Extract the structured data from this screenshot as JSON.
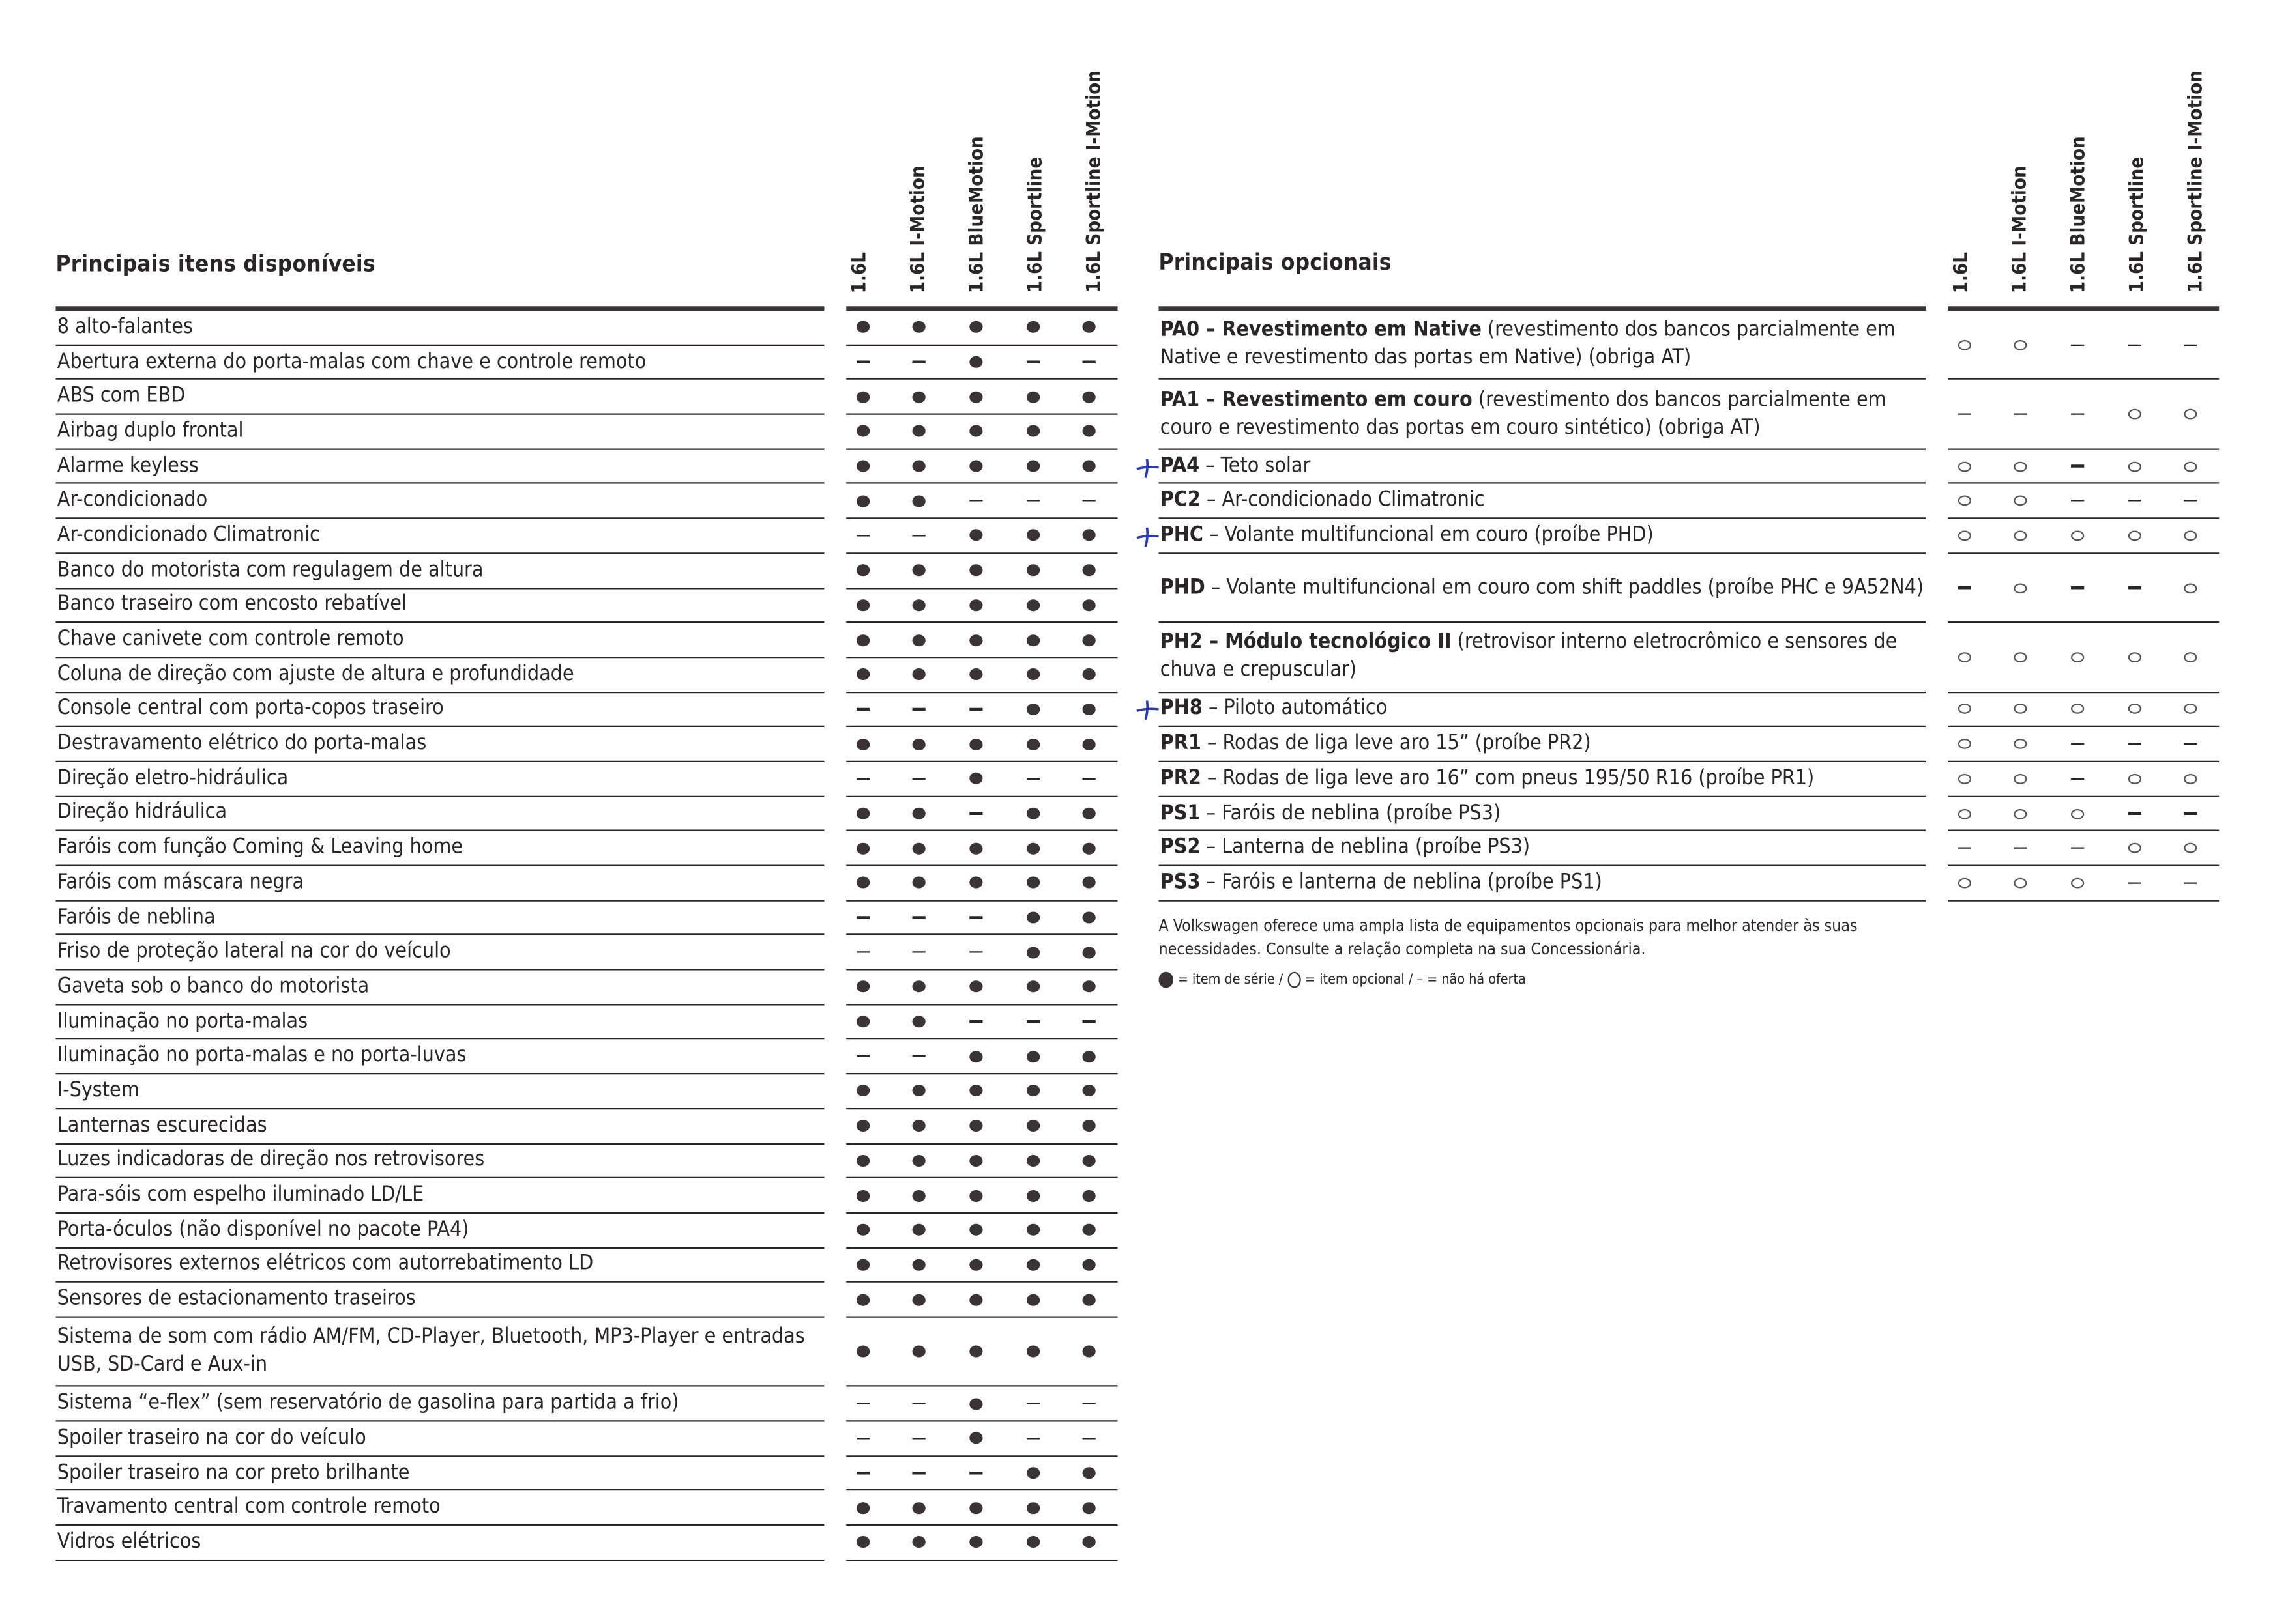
{
  "legend_colors": {
    "text": "#2a2628",
    "pen_mark": "#2a3bb0"
  },
  "versions": [
    "1.6L",
    "1.6L I-Motion",
    "1.6L BlueMotion",
    "1.6L Sportline",
    "1.6L Sportline I-Motion"
  ],
  "symbols": {
    "S": "item de série (filled dot)",
    "O": "item opcional (hollow circle)",
    "-": "não há oferta (dash)"
  },
  "standard": {
    "title": "Principais itens disponíveis",
    "rows": [
      {
        "label": "8 alto-falantes",
        "values": [
          "S",
          "S",
          "S",
          "S",
          "S"
        ]
      },
      {
        "label": "Abertura externa do porta-malas com chave e controle remoto",
        "values": [
          "-",
          "-",
          "S",
          "-",
          "-"
        ]
      },
      {
        "label": "ABS com EBD",
        "values": [
          "S",
          "S",
          "S",
          "S",
          "S"
        ]
      },
      {
        "label": "Airbag duplo frontal",
        "values": [
          "S",
          "S",
          "S",
          "S",
          "S"
        ]
      },
      {
        "label": "Alarme keyless",
        "values": [
          "S",
          "S",
          "S",
          "S",
          "S"
        ]
      },
      {
        "label": "Ar-condicionado",
        "values": [
          "S",
          "S",
          "-",
          "-",
          "-"
        ]
      },
      {
        "label": "Ar-condicionado Climatronic",
        "values": [
          "-",
          "-",
          "S",
          "S",
          "S"
        ]
      },
      {
        "label": "Banco do motorista com regulagem de altura",
        "values": [
          "S",
          "S",
          "S",
          "S",
          "S"
        ]
      },
      {
        "label": "Banco traseiro com encosto rebatível",
        "values": [
          "S",
          "S",
          "S",
          "S",
          "S"
        ]
      },
      {
        "label": "Chave canivete com controle remoto",
        "values": [
          "S",
          "S",
          "S",
          "S",
          "S"
        ]
      },
      {
        "label": "Coluna de direção com ajuste de altura e profundidade",
        "values": [
          "S",
          "S",
          "S",
          "S",
          "S"
        ]
      },
      {
        "label": "Console central com porta-copos traseiro",
        "values": [
          "-",
          "-",
          "-",
          "S",
          "S"
        ]
      },
      {
        "label": "Destravamento elétrico do porta-malas",
        "values": [
          "S",
          "S",
          "S",
          "S",
          "S"
        ]
      },
      {
        "label": "Direção eletro-hidráulica",
        "values": [
          "-",
          "-",
          "S",
          "-",
          "-"
        ]
      },
      {
        "label": "Direção hidráulica",
        "values": [
          "S",
          "S",
          "-",
          "S",
          "S"
        ]
      },
      {
        "label": "Faróis com função Coming & Leaving home",
        "values": [
          "S",
          "S",
          "S",
          "S",
          "S"
        ]
      },
      {
        "label": "Faróis com máscara negra",
        "values": [
          "S",
          "S",
          "S",
          "S",
          "S"
        ]
      },
      {
        "label": "Faróis de neblina",
        "values": [
          "-",
          "-",
          "-",
          "S",
          "S"
        ]
      },
      {
        "label": "Friso de proteção lateral na cor do veículo",
        "values": [
          "-",
          "-",
          "-",
          "S",
          "S"
        ]
      },
      {
        "label": "Gaveta sob o banco do motorista",
        "values": [
          "S",
          "S",
          "S",
          "S",
          "S"
        ]
      },
      {
        "label": "Iluminação no porta-malas",
        "values": [
          "S",
          "S",
          "-",
          "-",
          "-"
        ]
      },
      {
        "label": "Iluminação no porta-malas e no porta-luvas",
        "values": [
          "-",
          "-",
          "S",
          "S",
          "S"
        ]
      },
      {
        "label": "I-System",
        "values": [
          "S",
          "S",
          "S",
          "S",
          "S"
        ]
      },
      {
        "label": "Lanternas escurecidas",
        "values": [
          "S",
          "S",
          "S",
          "S",
          "S"
        ]
      },
      {
        "label": "Luzes indicadoras de direção nos retrovisores",
        "values": [
          "S",
          "S",
          "S",
          "S",
          "S"
        ]
      },
      {
        "label": "Para-sóis com espelho iluminado LD/LE",
        "values": [
          "S",
          "S",
          "S",
          "S",
          "S"
        ]
      },
      {
        "label": "Porta-óculos (não disponível no pacote PA4)",
        "values": [
          "S",
          "S",
          "S",
          "S",
          "S"
        ]
      },
      {
        "label": "Retrovisores externos elétricos com autorrebatimento LD",
        "values": [
          "S",
          "S",
          "S",
          "S",
          "S"
        ]
      },
      {
        "label": "Sensores de estacionamento traseiros",
        "values": [
          "S",
          "S",
          "S",
          "S",
          "S"
        ]
      },
      {
        "label": "Sistema de som com rádio AM/FM, CD-Player, Bluetooth, MP3-Player e entradas USB, SD-Card e Aux-in",
        "values": [
          "S",
          "S",
          "S",
          "S",
          "S"
        ],
        "double": true
      },
      {
        "label": "Sistema “e-flex” (sem reservatório de gasolina para partida a frio)",
        "values": [
          "-",
          "-",
          "S",
          "-",
          "-"
        ]
      },
      {
        "label": "Spoiler traseiro na cor do veículo",
        "values": [
          "-",
          "-",
          "S",
          "-",
          "-"
        ]
      },
      {
        "label": "Spoiler traseiro na cor preto brilhante",
        "values": [
          "-",
          "-",
          "-",
          "S",
          "S"
        ]
      },
      {
        "label": "Travamento central com controle remoto",
        "values": [
          "S",
          "S",
          "S",
          "S",
          "S"
        ]
      },
      {
        "label": "Vidros elétricos",
        "values": [
          "S",
          "S",
          "S",
          "S",
          "S"
        ]
      }
    ]
  },
  "optional": {
    "title": "Principais opcionais",
    "rows": [
      {
        "code": "PA0 –",
        "bold": " Revestimento em Native",
        "text": " (revestimento dos bancos parcialmente em Native e revestimento das portas em Native) (obriga AT)",
        "values": [
          "O",
          "O",
          "-",
          "-",
          "-"
        ],
        "double": true
      },
      {
        "code": "PA1 –",
        "bold": " Revestimento em couro",
        "text": " (revestimento dos bancos parcialmente em couro e revestimento das portas em couro sintético) (obriga AT)",
        "values": [
          "-",
          "-",
          "-",
          "O",
          "O"
        ],
        "double": true
      },
      {
        "code": "PA4",
        "bold": "",
        "text": " – Teto solar",
        "values": [
          "O",
          "O",
          "-",
          "O",
          "O"
        ],
        "mark": true
      },
      {
        "code": "PC2",
        "bold": "",
        "text": " – Ar-condicionado Climatronic",
        "values": [
          "O",
          "O",
          "-",
          "-",
          "-"
        ]
      },
      {
        "code": "PHC",
        "bold": "",
        "text": " – Volante multifuncional em couro (proíbe PHD)",
        "values": [
          "O",
          "O",
          "O",
          "O",
          "O"
        ],
        "mark": true
      },
      {
        "code": "PHD",
        "bold": "",
        "text": " – Volante multifuncional em couro com shift paddles (proíbe PHC e 9A52N4)",
        "values": [
          "-",
          "O",
          "-",
          "-",
          "O"
        ],
        "double": true
      },
      {
        "code": "PH2 –",
        "bold": " Módulo tecnológico II",
        "text": " (retrovisor interno eletrocrômico e sensores de chuva e crepuscular)",
        "values": [
          "O",
          "O",
          "O",
          "O",
          "O"
        ],
        "double": true
      },
      {
        "code": "PH8",
        "bold": "",
        "text": " – Piloto automático",
        "values": [
          "O",
          "O",
          "O",
          "O",
          "O"
        ],
        "mark": true
      },
      {
        "code": "PR1",
        "bold": "",
        "text": " – Rodas de liga leve aro 15” (proíbe PR2)",
        "values": [
          "O",
          "O",
          "-",
          "-",
          "-"
        ]
      },
      {
        "code": "PR2",
        "bold": "",
        "text": " – Rodas de liga leve aro 16” com pneus 195/50 R16 (proíbe PR1)",
        "values": [
          "O",
          "O",
          "-",
          "O",
          "O"
        ]
      },
      {
        "code": "PS1",
        "bold": "",
        "text": " – Faróis de neblina (proíbe PS3)",
        "values": [
          "O",
          "O",
          "O",
          "-",
          "-"
        ]
      },
      {
        "code": "PS2",
        "bold": "",
        "text": " – Lanterna de neblina (proíbe PS3)",
        "values": [
          "-",
          "-",
          "-",
          "O",
          "O"
        ]
      },
      {
        "code": "PS3",
        "bold": "",
        "text": " – Faróis e lanterna de neblina (proíbe PS1)",
        "values": [
          "O",
          "O",
          "O",
          "-",
          "-"
        ]
      }
    ]
  },
  "note": "A Volkswagen oferece uma ampla lista de equipamentos opcionais para melhor atender às suas necessidades. Consulte a relação completa na sua Concessionária.",
  "legend": {
    "standard": "= item de série /",
    "optional": "= item opcional / – = não há oferta"
  }
}
